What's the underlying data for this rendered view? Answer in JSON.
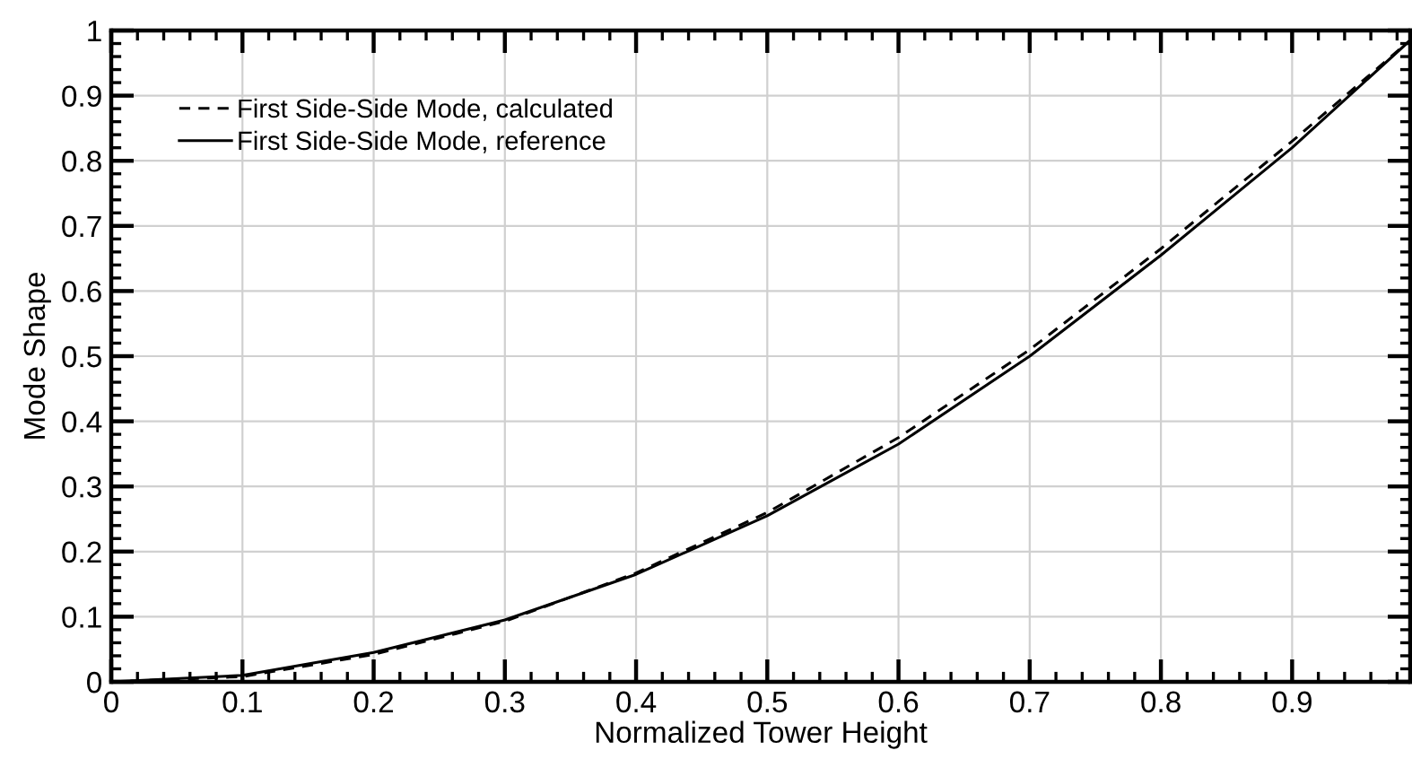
{
  "chart_data": {
    "type": "line",
    "xlabel": "Normalized Tower Height",
    "ylabel": "Mode Shape",
    "x": [
      0,
      0.1,
      0.2,
      0.3,
      0.4,
      0.5,
      0.6,
      0.7,
      0.8,
      0.9,
      0.99
    ],
    "series": [
      {
        "name": "First Side-Side Mode, calculated",
        "color": "#000000",
        "line_style": "dashed",
        "values": [
          0,
          0.008,
          0.042,
          0.093,
          0.167,
          0.26,
          0.375,
          0.51,
          0.665,
          0.83,
          0.985
        ]
      },
      {
        "name": "First Side-Side Mode, reference",
        "color": "#000000",
        "line_style": "solid",
        "values": [
          0,
          0.01,
          0.045,
          0.095,
          0.165,
          0.255,
          0.365,
          0.5,
          0.655,
          0.82,
          0.985
        ]
      }
    ],
    "xlim": [
      0,
      0.99
    ],
    "ylim": [
      0,
      1
    ],
    "xticks": [
      0,
      0.1,
      0.2,
      0.3,
      0.4,
      0.5,
      0.6,
      0.7,
      0.8,
      0.9
    ],
    "yticks": [
      0,
      0.1,
      0.2,
      0.3,
      0.4,
      0.5,
      0.6,
      0.7,
      0.8,
      0.9,
      1
    ],
    "grid": true,
    "legend": "top left",
    "marker": "none"
  }
}
